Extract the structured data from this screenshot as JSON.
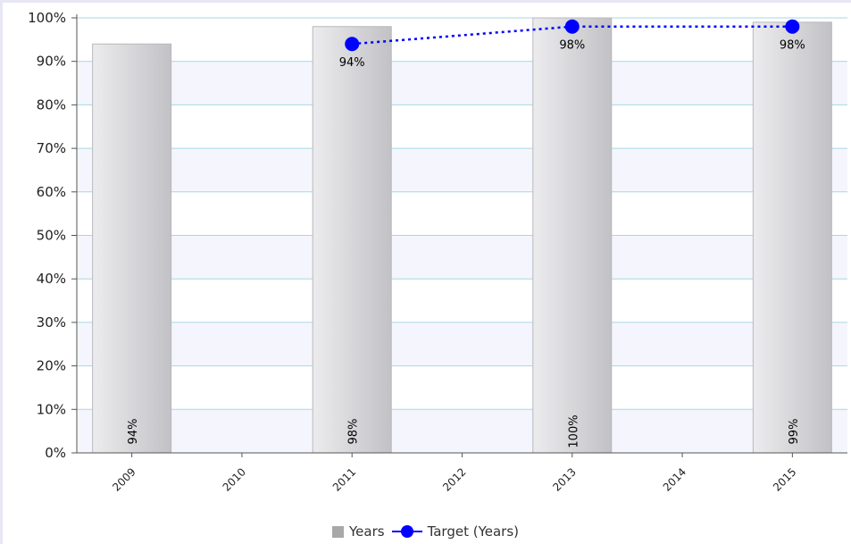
{
  "chart_data": {
    "type": "bar",
    "categories": [
      "2009",
      "2010",
      "2011",
      "2012",
      "2013",
      "2014",
      "2015"
    ],
    "series": [
      {
        "name": "Years",
        "kind": "bar",
        "values": [
          94,
          null,
          98,
          null,
          100,
          null,
          99
        ],
        "labels": [
          "94%",
          null,
          "98%",
          null,
          "100%",
          null,
          "99%"
        ]
      },
      {
        "name": "Target (Years)",
        "kind": "line",
        "style": "dotted",
        "values": [
          null,
          null,
          94,
          null,
          98,
          null,
          98
        ],
        "labels": [
          null,
          null,
          "94%",
          null,
          "98%",
          null,
          "98%"
        ]
      }
    ],
    "yticks": [
      "0%",
      "10%",
      "20%",
      "30%",
      "40%",
      "50%",
      "60%",
      "70%",
      "80%",
      "90%",
      "100%"
    ],
    "ylim": [
      0,
      100
    ],
    "grid": true,
    "legend_position": "bottom",
    "colors": {
      "bar": "#d4d4d6",
      "line": "#0000ff",
      "grid": "#a6d8e3",
      "band": "#f5f6fd"
    }
  }
}
